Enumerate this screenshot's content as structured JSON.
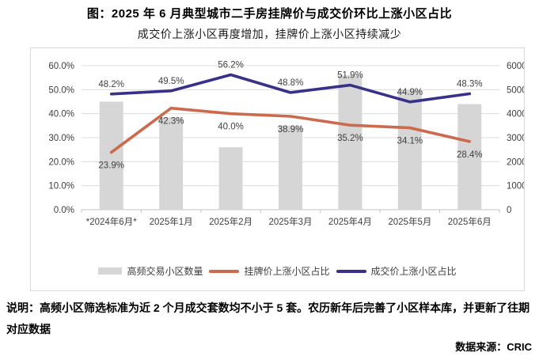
{
  "title": "图：2025 年 6 月典型城市二手房挂牌价与成交价环比上涨小区占比",
  "subtitle": "成交价上涨小区再度增加，挂牌价上涨小区持续减少",
  "note": "说明：高频小区筛选标准为近 2 个月成交套数均不小于 5 套。农历新年后完善了小区样本库，并更新了往期对应数据",
  "source": "数据来源：CRIC",
  "colors": {
    "bar": "#d6d6d6",
    "listing_line": "#cb6a4d",
    "deal_line": "#37318a",
    "gridline": "#dcdcdc",
    "axis_line": "#c3c3c3",
    "tick_label": "#3f3f3f",
    "data_label": "#3f3f3f",
    "frame_border": "#d9d9d9"
  },
  "chart_data": {
    "type": "combo",
    "grid": true,
    "legend_position": "bottom",
    "categories": [
      "*2024年6月*",
      "2025年1月",
      "2025年2月",
      "2025年3月",
      "2025年4月",
      "2025年5月",
      "2025年6月"
    ],
    "series": [
      {
        "name": "高频交易小区数量",
        "type": "bar",
        "axis": "right",
        "color": "#d6d6d6",
        "values": [
          4500,
          3850,
          2600,
          3500,
          5600,
          5000,
          4400
        ]
      },
      {
        "name": "挂牌价上涨小区占比",
        "type": "line",
        "axis": "left",
        "color": "#cb6a4d",
        "values": [
          23.9,
          42.3,
          40.0,
          38.9,
          35.2,
          34.1,
          28.4
        ],
        "labels": [
          "23.9%",
          "42.3%",
          "40.0%",
          "38.9%",
          "35.2%",
          "34.1%",
          "28.4%"
        ],
        "label_side": "below"
      },
      {
        "name": "成交价上涨小区占比",
        "type": "line",
        "axis": "left",
        "color": "#37318a",
        "values": [
          48.2,
          49.5,
          56.2,
          48.8,
          51.9,
          44.9,
          48.3
        ],
        "labels": [
          "48.2%",
          "49.5%",
          "56.2%",
          "48.8%",
          "51.9%",
          "44.9%",
          "48.3%"
        ],
        "label_side": "above"
      }
    ],
    "left_axis": {
      "min": 0,
      "max": 60,
      "step": 10,
      "format": "percent",
      "ticks": [
        "0.0%",
        "10.0%",
        "20.0%",
        "30.0%",
        "40.0%",
        "50.0%",
        "60.0%"
      ]
    },
    "right_axis": {
      "min": 0,
      "max": 6000,
      "step": 1000,
      "ticks": [
        "0",
        "1000",
        "2000",
        "3000",
        "4000",
        "5000",
        "6000"
      ]
    }
  }
}
